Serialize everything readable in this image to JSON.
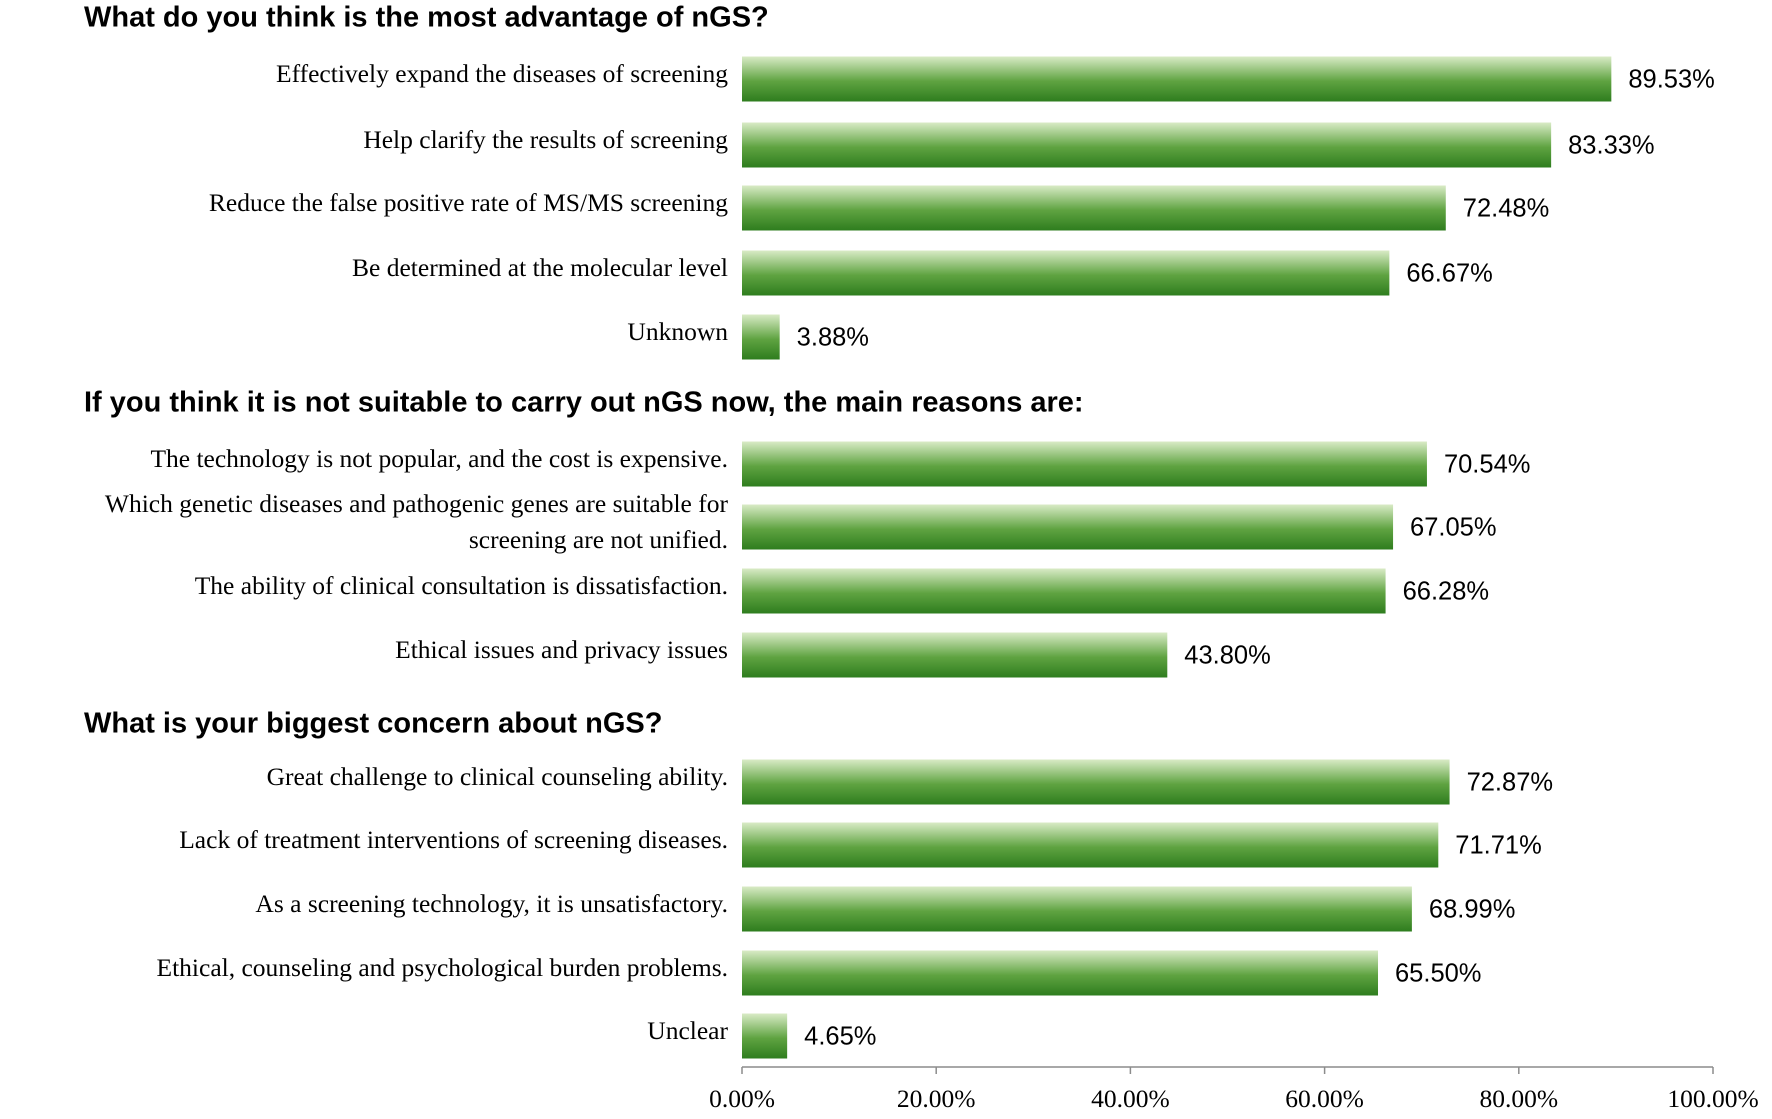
{
  "chart_data": {
    "type": "bar",
    "orientation": "horizontal",
    "colors": {
      "bar_light": "#d9ebc6",
      "bar_mid": "#5fa341",
      "bar_dark": "#2e7d1e"
    },
    "xlim": [
      0,
      100
    ],
    "x_ticks": [
      0,
      20,
      40,
      60,
      80,
      100
    ],
    "x_tick_labels": [
      "0.00%",
      "20.00%",
      "40.00%",
      "60.00%",
      "80.00%",
      "100.00%"
    ],
    "sections": [
      {
        "title": "What do you think is the most advantage of nGS?",
        "bars": [
          {
            "label": [
              "Effectively expand the diseases of screening"
            ],
            "value": 89.53,
            "value_label": "89.53%"
          },
          {
            "label": [
              "Help clarify the results of screening"
            ],
            "value": 83.33,
            "value_label": "83.33%"
          },
          {
            "label": [
              "Reduce the false positive rate of MS/MS screening"
            ],
            "value": 72.48,
            "value_label": "72.48%"
          },
          {
            "label": [
              "Be determined at the molecular level"
            ],
            "value": 66.67,
            "value_label": "66.67%"
          },
          {
            "label": [
              "Unknown"
            ],
            "value": 3.88,
            "value_label": "3.88%"
          }
        ]
      },
      {
        "title": "If you think it is not suitable to carry out nGS now, the main reasons are:",
        "bars": [
          {
            "label": [
              "The technology is not popular, and the cost is expensive."
            ],
            "value": 70.54,
            "value_label": "70.54%"
          },
          {
            "label": [
              "Which genetic diseases and pathogenic genes are suitable for",
              "screening are not unified."
            ],
            "value": 67.05,
            "value_label": "67.05%"
          },
          {
            "label": [
              "The ability of clinical consultation is dissatisfaction."
            ],
            "value": 66.28,
            "value_label": "66.28%"
          },
          {
            "label": [
              "Ethical issues and privacy issues"
            ],
            "value": 43.8,
            "value_label": "43.80%"
          }
        ]
      },
      {
        "title": "What is your biggest concern about nGS?",
        "bars": [
          {
            "label": [
              "Great challenge to clinical counseling ability."
            ],
            "value": 72.87,
            "value_label": "72.87%"
          },
          {
            "label": [
              "Lack of treatment interventions of screening diseases."
            ],
            "value": 71.71,
            "value_label": "71.71%"
          },
          {
            "label": [
              "As a screening technology, it is unsatisfactory."
            ],
            "value": 68.99,
            "value_label": "68.99%"
          },
          {
            "label": [
              "Ethical, counseling and psychological burden problems."
            ],
            "value": 65.5,
            "value_label": "65.50%"
          },
          {
            "label": [
              "Unclear"
            ],
            "value": 4.65,
            "value_label": "4.65%"
          }
        ]
      }
    ]
  }
}
